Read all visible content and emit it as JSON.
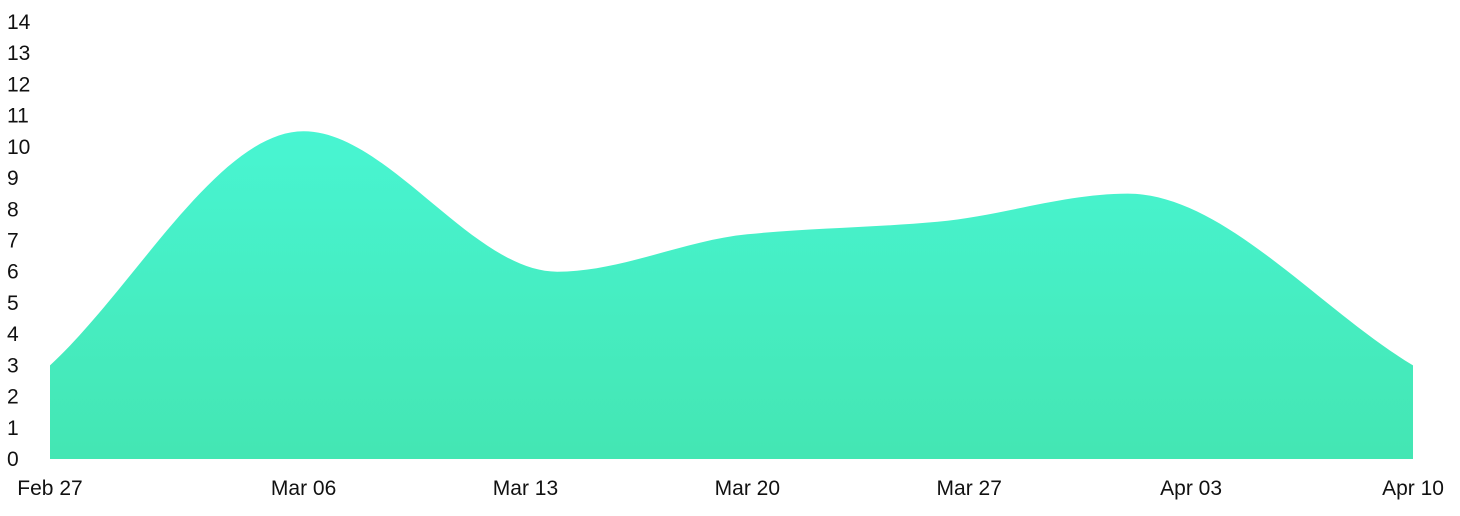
{
  "chart_data": {
    "type": "area",
    "title": "",
    "xlabel": "",
    "ylabel": "",
    "x": [
      "2024-02-27",
      "2024-03-06",
      "2024-03-13",
      "2024-03-20",
      "2024-03-27",
      "2024-04-03",
      "2024-04-10"
    ],
    "x_tick_labels": [
      "Feb 27",
      "Mar 06",
      "Mar 13",
      "Mar 20",
      "Mar 27",
      "Apr 03",
      "Apr 10"
    ],
    "y_ticks": [
      0,
      1,
      2,
      3,
      4,
      5,
      6,
      7,
      8,
      9,
      10,
      11,
      12,
      13,
      14
    ],
    "ylim": [
      0,
      14
    ],
    "grid": false,
    "legend": "none",
    "series": [
      {
        "x": [
          "2024-02-27",
          "2024-03-06",
          "2024-03-14",
          "2024-03-20",
          "2024-03-26",
          "2024-04-01",
          "2024-04-10"
        ],
        "values": [
          3,
          10.5,
          6.0,
          7.2,
          7.6,
          8.5,
          3
        ],
        "curve": "smooth",
        "color_top": "#48f5d2",
        "color_bottom": "#44e6b3"
      }
    ]
  }
}
